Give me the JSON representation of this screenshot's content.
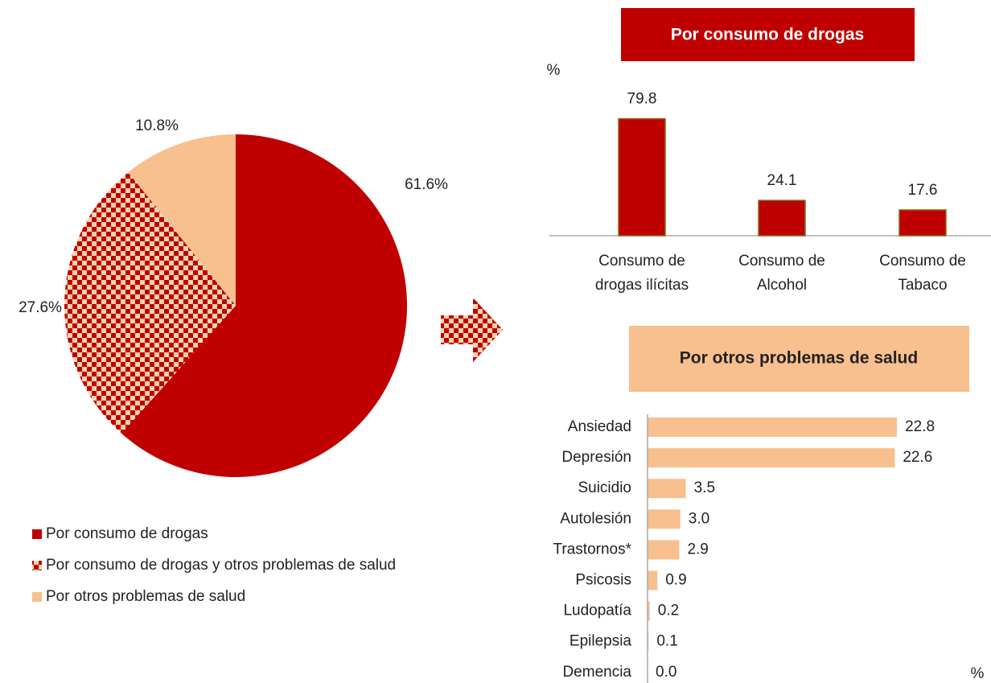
{
  "chart_data": [
    {
      "type": "pie",
      "categories": [
        "Por consumo de drogas",
        "Por consumo de drogas y otros problemas de salud",
        "Por otros problemas de salud"
      ],
      "values": [
        61.6,
        27.6,
        10.8
      ],
      "value_labels": [
        "61.6%",
        "27.6%",
        "10.8%"
      ],
      "colors": [
        "#c00000",
        "#c00000",
        "#f8bf8f"
      ],
      "patterns": [
        "solid",
        "checker",
        "solid"
      ]
    },
    {
      "type": "bar",
      "title": "Por consumo de drogas",
      "y_label": "%",
      "categories": [
        "Consumo de drogas ilícitas",
        "Consumo de Alcohol",
        "Consumo de Tabaco"
      ],
      "values": [
        79.8,
        24.1,
        17.6
      ],
      "color": "#c00000",
      "ylim": [
        0,
        90
      ]
    },
    {
      "type": "hbar",
      "title": "Por otros problemas de salud",
      "x_label": "%",
      "categories": [
        "Ansiedad",
        "Depresión",
        "Suicidio",
        "Autolesión",
        "Trastornos*",
        "Psicosis",
        "Ludopatía",
        "Epilepsia",
        "Demencia"
      ],
      "values": [
        22.8,
        22.6,
        3.5,
        3.0,
        2.9,
        0.9,
        0.2,
        0.1,
        0.0
      ],
      "value_labels": [
        "22.8",
        "22.6",
        "3.5",
        "3.0",
        "2.9",
        "0.9",
        "0.2",
        "0.1",
        "0.0"
      ],
      "color": "#f8bf8f",
      "xlim": [
        0,
        25
      ]
    }
  ]
}
